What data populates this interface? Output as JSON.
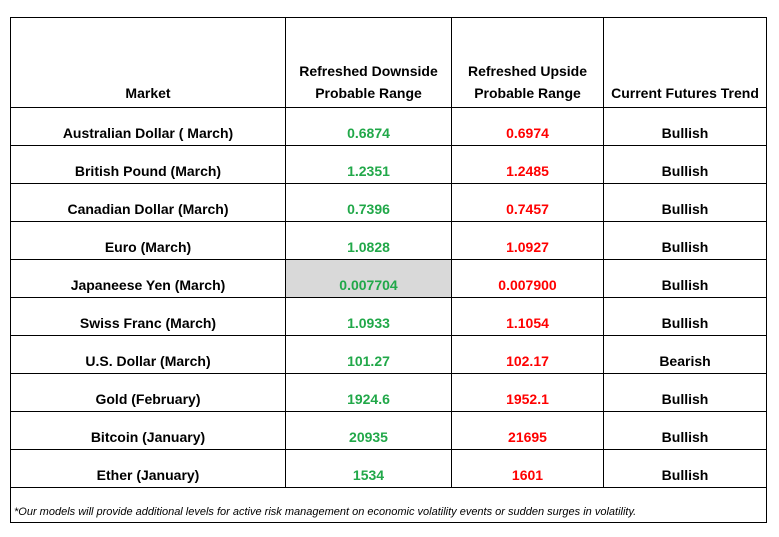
{
  "table": {
    "headers": {
      "market": "Market",
      "downside": [
        "Refreshed Downside",
        "Probable Range"
      ],
      "upside": [
        "Refreshed Upside",
        "Probable Range"
      ],
      "trend": "Current Futures Trend"
    },
    "rows": [
      {
        "market": "Australian Dollar ( March)",
        "downside": "0.6874",
        "upside": "0.6974",
        "trend": "Bullish"
      },
      {
        "market": "British Pound (March)",
        "downside": "1.2351",
        "upside": "1.2485",
        "trend": "Bullish"
      },
      {
        "market": "Canadian Dollar (March)",
        "downside": "0.7396",
        "upside": "0.7457",
        "trend": "Bullish"
      },
      {
        "market": "Euro (March)",
        "downside": "1.0828",
        "upside": "1.0927",
        "trend": "Bullish"
      },
      {
        "market": "Japaneese Yen (March)",
        "downside": "0.007704",
        "upside": "0.007900",
        "trend": "Bullish"
      },
      {
        "market": "Swiss Franc (March)",
        "downside": "1.0933",
        "upside": "1.1054",
        "trend": "Bullish"
      },
      {
        "market": "U.S. Dollar (March)",
        "downside": "101.27",
        "upside": "102.17",
        "trend": "Bearish"
      },
      {
        "market": "Gold (February)",
        "downside": "1924.6",
        "upside": "1952.1",
        "trend": "Bullish"
      },
      {
        "market": "Bitcoin (January)",
        "downside": "20935",
        "upside": "21695",
        "trend": "Bullish"
      },
      {
        "market": "Ether (January)",
        "downside": "1534",
        "upside": "1601",
        "trend": "Bullish"
      }
    ],
    "footnote": "*Our models will provide additional levels for active risk management on economic volatility events or sudden surges in volatility."
  },
  "colors": {
    "downside_text": "#21a849",
    "upside_text": "#ff0000",
    "shaded_cell": "#d9d9d9"
  }
}
